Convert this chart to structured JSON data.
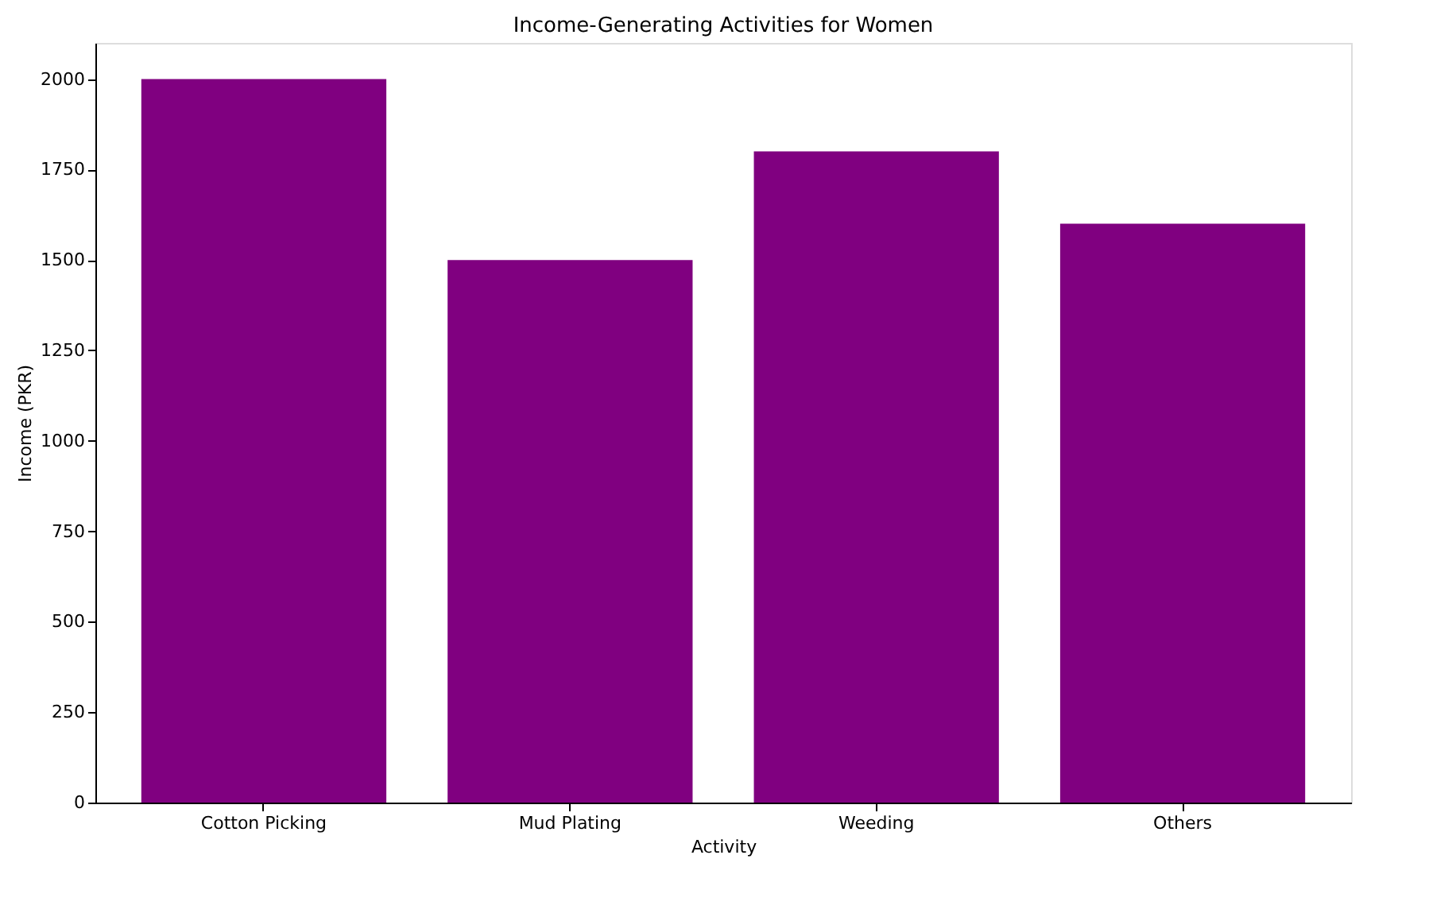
{
  "chart_data": {
    "type": "bar",
    "title": "Income-Generating Activities for Women",
    "xlabel": "Activity",
    "ylabel": "Income (PKR)",
    "categories": [
      "Cotton Picking",
      "Mud Plating",
      "Weeding",
      "Others"
    ],
    "values": [
      2000,
      1500,
      1800,
      1600
    ],
    "color": "#800080",
    "ylim": [
      0,
      2100
    ],
    "yticks": [
      0,
      250,
      500,
      750,
      1000,
      1250,
      1500,
      1750,
      2000
    ],
    "grid": false
  }
}
